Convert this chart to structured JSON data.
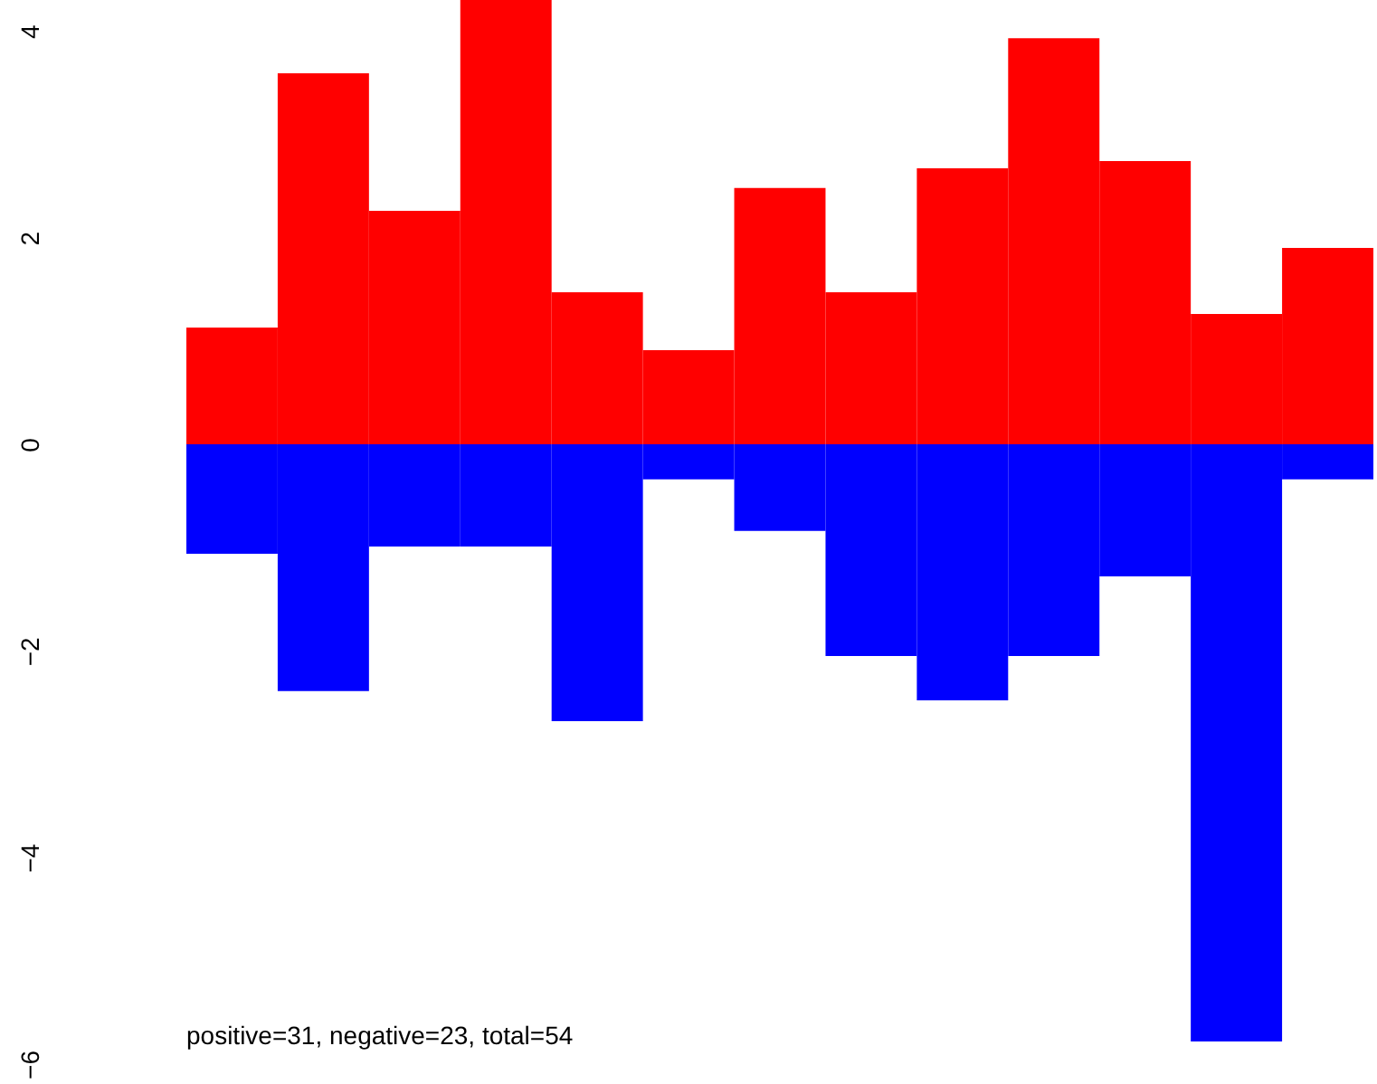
{
  "chart_data": {
    "type": "bar",
    "categories": [
      null,
      null,
      null,
      null,
      null,
      null,
      null,
      null,
      null,
      null,
      null,
      null,
      null
    ],
    "series": [
      {
        "color": "#ff0000",
        "values": [
          1.13,
          3.59,
          2.26,
          4.3,
          1.47,
          0.91,
          2.48,
          1.47,
          2.67,
          3.93,
          2.74,
          1.26,
          1.9
        ]
      },
      {
        "color": "#0000ff",
        "values": [
          -1.06,
          -2.39,
          -0.99,
          -0.99,
          -2.68,
          -0.34,
          -0.84,
          -2.05,
          -2.48,
          -2.05,
          -1.28,
          -5.78,
          -0.34
        ]
      }
    ],
    "ylim": [
      -6,
      4.3
    ],
    "yticks": [
      {
        "value": -6,
        "label": "−6"
      },
      {
        "value": -4,
        "label": "−4"
      },
      {
        "value": -2,
        "label": "−2"
      },
      {
        "value": 0,
        "label": "0"
      },
      {
        "value": 2,
        "label": "2"
      },
      {
        "value": 4,
        "label": "4"
      }
    ],
    "tick_labels": "y",
    "grid": false,
    "stacked": true,
    "annotations": [
      "positive=31, negative=23, total=54"
    ]
  }
}
